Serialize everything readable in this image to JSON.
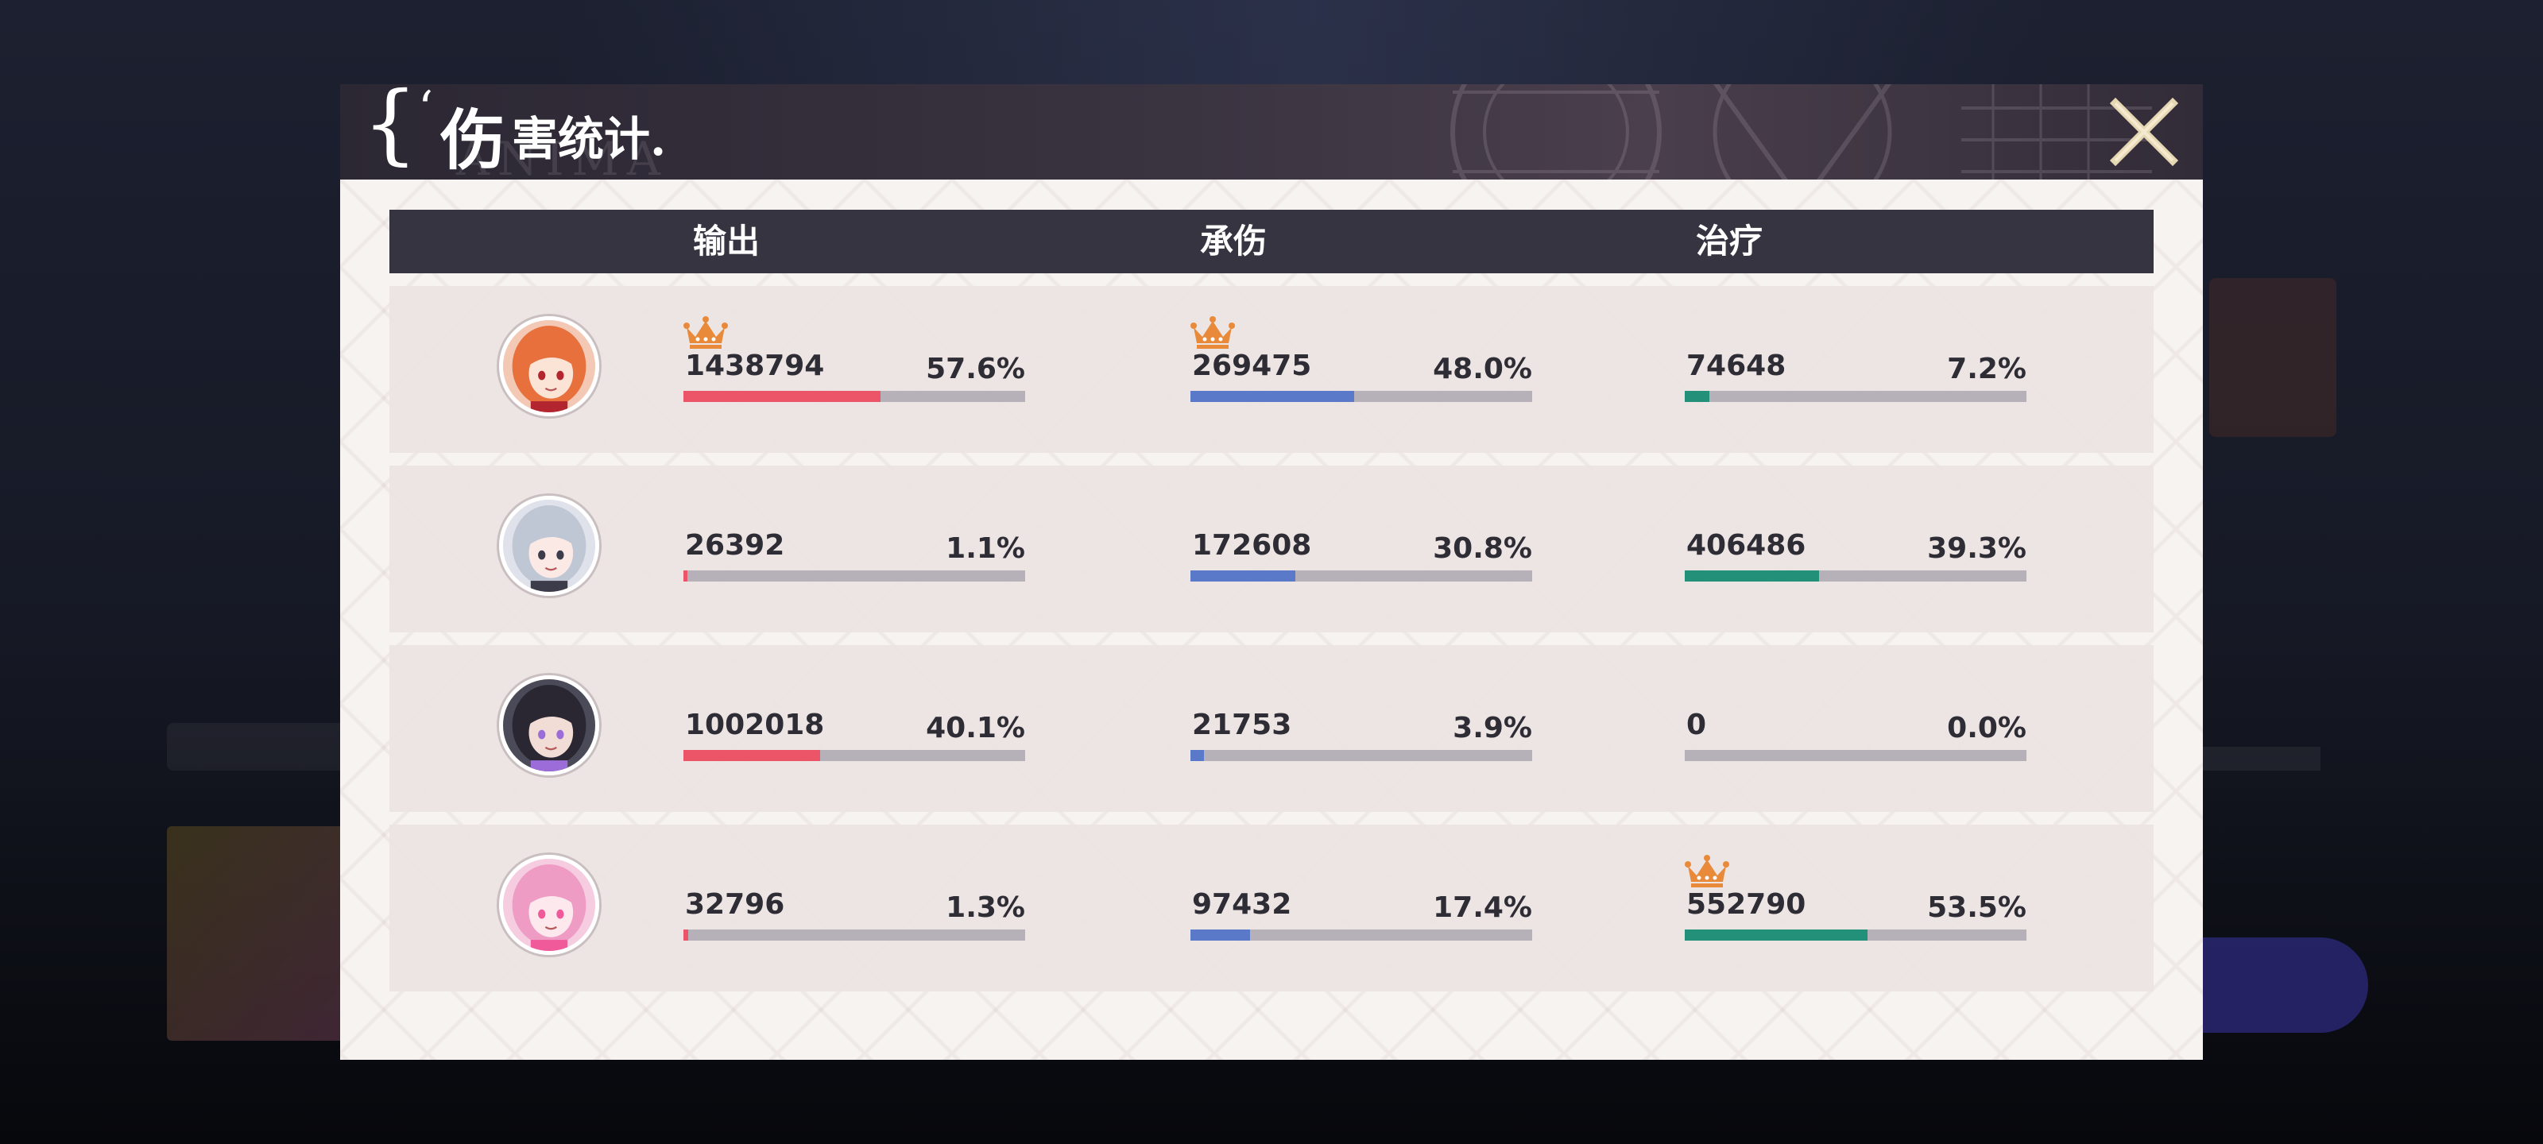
{
  "modal": {
    "title_big": "伤",
    "title_small": "害统计.",
    "title_watermark": "ANIMA"
  },
  "columns": [
    "输出",
    "承伤",
    "治疗"
  ],
  "colors": {
    "output": "#ec5468",
    "tank": "#5a79c9",
    "heal": "#23917a",
    "crown": "#e88a3a"
  },
  "rows": [
    {
      "avatar": "character-portrait-orange-hair",
      "output": {
        "value": "1438794",
        "pct": "57.6%",
        "fraction": 0.576,
        "crown": true
      },
      "tank": {
        "value": "269475",
        "pct": "48.0%",
        "fraction": 0.48,
        "crown": true
      },
      "heal": {
        "value": "74648",
        "pct": "7.2%",
        "fraction": 0.072,
        "crown": false
      }
    },
    {
      "avatar": "character-portrait-silver-hair",
      "output": {
        "value": "26392",
        "pct": "1.1%",
        "fraction": 0.011,
        "crown": false
      },
      "tank": {
        "value": "172608",
        "pct": "30.8%",
        "fraction": 0.308,
        "crown": false
      },
      "heal": {
        "value": "406486",
        "pct": "39.3%",
        "fraction": 0.393,
        "crown": false
      }
    },
    {
      "avatar": "character-portrait-dark-hair",
      "output": {
        "value": "1002018",
        "pct": "40.1%",
        "fraction": 0.401,
        "crown": false
      },
      "tank": {
        "value": "21753",
        "pct": "3.9%",
        "fraction": 0.039,
        "crown": false
      },
      "heal": {
        "value": "0",
        "pct": "0.0%",
        "fraction": 0.0,
        "crown": false
      }
    },
    {
      "avatar": "character-portrait-pink-hair",
      "output": {
        "value": "32796",
        "pct": "1.3%",
        "fraction": 0.013,
        "crown": false
      },
      "tank": {
        "value": "97432",
        "pct": "17.4%",
        "fraction": 0.174,
        "crown": false
      },
      "heal": {
        "value": "552790",
        "pct": "53.5%",
        "fraction": 0.535,
        "crown": true
      }
    }
  ]
}
